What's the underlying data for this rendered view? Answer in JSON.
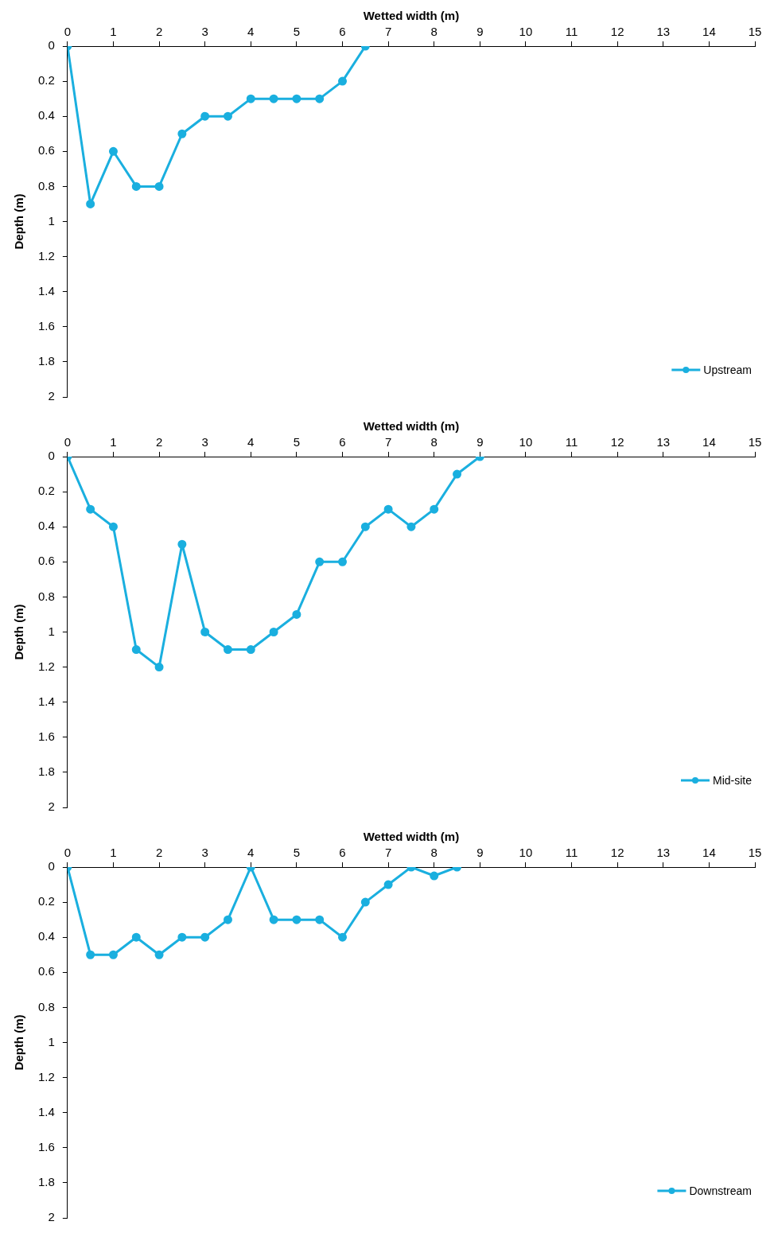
{
  "chart_data": [
    {
      "type": "line",
      "xlabel": "Wetted width (m)",
      "ylabel": "Depth (m)",
      "x": [
        0,
        0.5,
        1,
        1.5,
        2,
        2.5,
        3,
        3.5,
        4,
        4.5,
        5,
        5.5,
        6,
        6.5
      ],
      "series": [
        {
          "name": "Upstream",
          "color": "#1aafdf",
          "values": [
            0,
            0.9,
            0.6,
            0.8,
            0.8,
            0.5,
            0.4,
            0.4,
            0.3,
            0.3,
            0.3,
            0.3,
            0.2,
            0
          ]
        }
      ],
      "xlim": [
        0,
        15
      ],
      "xticks": [
        0,
        1,
        2,
        3,
        4,
        5,
        6,
        7,
        8,
        9,
        10,
        11,
        12,
        13,
        14,
        15
      ],
      "ylim": [
        2,
        0
      ],
      "yticks": [
        0,
        0.2,
        0.4,
        0.6,
        0.8,
        1,
        1.2,
        1.4,
        1.6,
        1.8,
        2
      ],
      "legend": "bottom right",
      "marker": "circle",
      "line_style": "solid"
    },
    {
      "type": "line",
      "xlabel": "Wetted width (m)",
      "ylabel": "Depth (m)",
      "x": [
        0,
        0.5,
        1,
        1.5,
        2,
        2.5,
        3,
        3.5,
        4,
        4.5,
        5,
        5.5,
        6,
        6.5,
        7,
        7.5,
        8,
        8.5,
        9
      ],
      "series": [
        {
          "name": "Mid-site",
          "color": "#1aafdf",
          "values": [
            0,
            0.3,
            0.4,
            1.1,
            1.2,
            0.5,
            1,
            1.1,
            1.1,
            1,
            0.9,
            0.6,
            0.6,
            0.4,
            0.3,
            0.4,
            0.3,
            0.1,
            0
          ]
        }
      ],
      "xlim": [
        0,
        15
      ],
      "xticks": [
        0,
        1,
        2,
        3,
        4,
        5,
        6,
        7,
        8,
        9,
        10,
        11,
        12,
        13,
        14,
        15
      ],
      "ylim": [
        2,
        0
      ],
      "yticks": [
        0,
        0.2,
        0.4,
        0.6,
        0.8,
        1,
        1.2,
        1.4,
        1.6,
        1.8,
        2
      ],
      "legend": "bottom right",
      "marker": "circle",
      "line_style": "solid"
    },
    {
      "type": "line",
      "xlabel": "Wetted width (m)",
      "ylabel": "Depth (m)",
      "x": [
        0,
        0.5,
        1,
        1.5,
        2,
        2.5,
        3,
        3.5,
        4,
        4.5,
        5,
        5.5,
        6,
        6.5,
        7,
        7.5,
        8,
        8.5
      ],
      "series": [
        {
          "name": "Downstream",
          "color": "#1aafdf",
          "values": [
            0,
            0.5,
            0.5,
            0.4,
            0.5,
            0.4,
            0.4,
            0.3,
            0,
            0.3,
            0.3,
            0.3,
            0.4,
            0.2,
            0.1,
            0,
            0.05,
            0
          ]
        }
      ],
      "xlim": [
        0,
        15
      ],
      "xticks": [
        0,
        1,
        2,
        3,
        4,
        5,
        6,
        7,
        8,
        9,
        10,
        11,
        12,
        13,
        14,
        15
      ],
      "ylim": [
        2,
        0
      ],
      "yticks": [
        0,
        0.2,
        0.4,
        0.6,
        0.8,
        1,
        1.2,
        1.4,
        1.6,
        1.8,
        2
      ],
      "legend": "bottom right",
      "marker": "circle",
      "line_style": "solid"
    }
  ]
}
